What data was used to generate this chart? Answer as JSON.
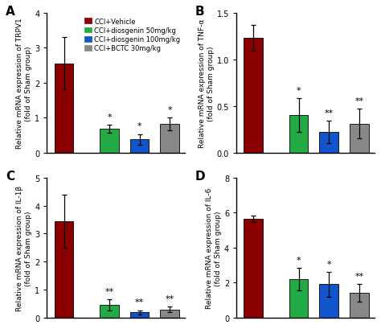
{
  "panels": [
    {
      "label": "A",
      "ylabel": "Relative mRNA expression of TRPV1\n(fold of Sham group)",
      "ylim": [
        0,
        4
      ],
      "yticks": [
        0,
        1,
        2,
        3,
        4
      ],
      "values": [
        2.55,
        0.68,
        0.38,
        0.82
      ],
      "errors": [
        0.75,
        0.12,
        0.15,
        0.18
      ],
      "sig": [
        "",
        "*",
        "*",
        "*"
      ],
      "has_legend": true
    },
    {
      "label": "B",
      "ylabel": "Relative mRNA expression of TNF-α\n(fold of Sham group)",
      "ylim": [
        0,
        1.5
      ],
      "yticks": [
        0.0,
        0.5,
        1.0,
        1.5
      ],
      "values": [
        1.23,
        0.4,
        0.22,
        0.31
      ],
      "errors": [
        0.14,
        0.18,
        0.12,
        0.16
      ],
      "sig": [
        "",
        "*",
        "**",
        "**"
      ],
      "has_legend": false
    },
    {
      "label": "C",
      "ylabel": "Relative mRNA expression of IL-1β\n(fold of Sham group)",
      "ylim": [
        0,
        5
      ],
      "yticks": [
        0,
        1,
        2,
        3,
        4,
        5
      ],
      "values": [
        3.45,
        0.46,
        0.18,
        0.28
      ],
      "errors": [
        0.95,
        0.2,
        0.08,
        0.1
      ],
      "sig": [
        "",
        "**",
        "**",
        "**"
      ],
      "has_legend": false
    },
    {
      "label": "D",
      "ylabel": "Relative mRNA expression of IL-6\n(fold of Sham group)",
      "ylim": [
        0,
        8
      ],
      "yticks": [
        0,
        2,
        4,
        6,
        8
      ],
      "values": [
        5.65,
        2.2,
        1.9,
        1.42
      ],
      "errors": [
        0.18,
        0.65,
        0.7,
        0.5
      ],
      "sig": [
        "",
        "*",
        "*",
        "**"
      ],
      "has_legend": false
    }
  ],
  "bar_colors": [
    "#8B0000",
    "#22AA44",
    "#1155CC",
    "#888888"
  ],
  "legend_labels": [
    "CCI+Vehicle",
    "CCI+diosgenin 50mg/kg",
    "CCI+diosgenin 100mg/kg",
    "CCI+BCTC 30mg/kg"
  ],
  "bar_width": 0.5,
  "background_color": "#ffffff",
  "sig_fontsize": 8,
  "label_fontsize": 6.5,
  "tick_fontsize": 7,
  "panel_label_fontsize": 11,
  "legend_fontsize": 6.0
}
